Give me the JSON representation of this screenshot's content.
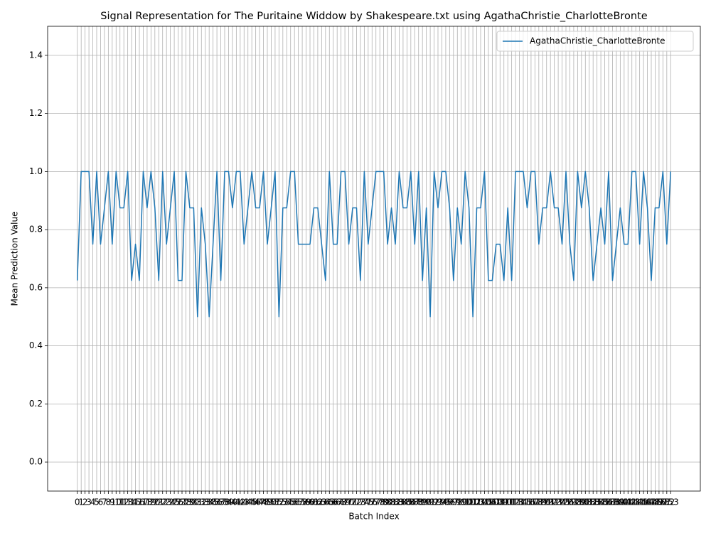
{
  "chart_data": {
    "type": "line",
    "title": "Signal Representation for The Puritaine Widdow by Shakespeare.txt using AgathaChristie_CharlotteBronte",
    "xlabel": "Batch Index",
    "ylabel": "Mean Prediction Value",
    "x": [
      0,
      1,
      2,
      3,
      4,
      5,
      6,
      7,
      8,
      9,
      10,
      11,
      12,
      13,
      14,
      15,
      16,
      17,
      18,
      19,
      20,
      21,
      22,
      23,
      24,
      25,
      26,
      27,
      28,
      29,
      30,
      31,
      32,
      33,
      34,
      35,
      36,
      37,
      38,
      39,
      40,
      41,
      42,
      43,
      44,
      45,
      46,
      47,
      48,
      49,
      50,
      51,
      52,
      53,
      54,
      55,
      56,
      57,
      58,
      59,
      60,
      61,
      62,
      63,
      64,
      65,
      66,
      67,
      68,
      69,
      70,
      71,
      72,
      73,
      74,
      75,
      76,
      77,
      78,
      79,
      80,
      81,
      82,
      83,
      84,
      85,
      86,
      87,
      88,
      89,
      90,
      91,
      92,
      93,
      94,
      95,
      96,
      97,
      98,
      99,
      100,
      101,
      102,
      103,
      104,
      105,
      106,
      107,
      108,
      109,
      110,
      111,
      112,
      113,
      114,
      115,
      116,
      117,
      118,
      119,
      120,
      121,
      122,
      123,
      124,
      125,
      126,
      127,
      128,
      129,
      130,
      131,
      132,
      133,
      134,
      135,
      136,
      137,
      138,
      139,
      140,
      141,
      142,
      143,
      144,
      145,
      146,
      147,
      148,
      149,
      150,
      151,
      152,
      153
    ],
    "series": [
      {
        "name": "AgathaChristie_CharlotteBronte",
        "color": "#1f77b4",
        "values": [
          0.625,
          1,
          1,
          1,
          0.75,
          1,
          0.75,
          0.875,
          1,
          0.75,
          1,
          0.875,
          0.875,
          1,
          0.625,
          0.75,
          0.625,
          1,
          0.875,
          1,
          0.875,
          0.625,
          1,
          0.75,
          0.875,
          1,
          0.625,
          0.625,
          1,
          0.875,
          0.875,
          0.5,
          0.875,
          0.75,
          0.5,
          0.75,
          1,
          0.625,
          1,
          1,
          0.875,
          1,
          1,
          0.75,
          0.875,
          1,
          0.875,
          0.875,
          1,
          0.75,
          0.875,
          1,
          0.5,
          0.875,
          0.875,
          1,
          1,
          0.75,
          0.75,
          0.75,
          0.75,
          0.875,
          0.875,
          0.75,
          0.625,
          1,
          0.75,
          0.75,
          1,
          1,
          0.75,
          0.875,
          0.875,
          0.625,
          1,
          0.75,
          0.875,
          1,
          1,
          1,
          0.75,
          0.875,
          0.75,
          1,
          0.875,
          0.875,
          1,
          0.75,
          1,
          0.625,
          0.875,
          0.5,
          1,
          0.875,
          1,
          1,
          0.875,
          0.625,
          0.875,
          0.75,
          1,
          0.875,
          0.5,
          0.875,
          0.875,
          1,
          0.625,
          0.625,
          0.75,
          0.75,
          0.625,
          0.875,
          0.625,
          1,
          1,
          1,
          0.875,
          1,
          1,
          0.75,
          0.875,
          0.875,
          1,
          0.875,
          0.875,
          0.75,
          1,
          0.75,
          0.625,
          1,
          0.875,
          1,
          0.875,
          0.625,
          0.75,
          0.875,
          0.75,
          1,
          0.625,
          0.75,
          0.875,
          0.75,
          0.75,
          1,
          1,
          0.75,
          1,
          0.875,
          0.625,
          0.875,
          0.875,
          1,
          0.75,
          1
        ]
      }
    ],
    "xlim": [
      -7.65,
      160.65
    ],
    "xticks": [
      0,
      1,
      2,
      3,
      4,
      5,
      6,
      7,
      8,
      9,
      10,
      11,
      12,
      13,
      14,
      15,
      16,
      17,
      18,
      19,
      20,
      21,
      22,
      23,
      24,
      25,
      26,
      27,
      28,
      29,
      30,
      31,
      32,
      33,
      34,
      35,
      36,
      37,
      38,
      39,
      40,
      41,
      42,
      43,
      44,
      45,
      46,
      47,
      48,
      49,
      50,
      51,
      52,
      53,
      54,
      55,
      56,
      57,
      58,
      59,
      60,
      61,
      62,
      63,
      64,
      65,
      66,
      67,
      68,
      69,
      70,
      71,
      72,
      73,
      74,
      75,
      76,
      77,
      78,
      79,
      80,
      81,
      82,
      83,
      84,
      85,
      86,
      87,
      88,
      89,
      90,
      91,
      92,
      93,
      94,
      95,
      96,
      97,
      98,
      99,
      100,
      101,
      102,
      103,
      104,
      105,
      106,
      107,
      108,
      109,
      110,
      111,
      112,
      113,
      114,
      115,
      116,
      117,
      118,
      119,
      120,
      121,
      122,
      123,
      124,
      125,
      126,
      127,
      128,
      129,
      130,
      131,
      132,
      133,
      134,
      135,
      136,
      137,
      138,
      139,
      140,
      141,
      142,
      143,
      144,
      145,
      146,
      147,
      148,
      149,
      150,
      151,
      152,
      153
    ],
    "ylim": [
      -0.1,
      1.5
    ],
    "yticks": [
      {
        "value": 0,
        "label": "0.0"
      },
      0.2,
      0.4,
      0.6,
      0.8,
      {
        "value": 1,
        "label": "1.0"
      },
      1.2,
      1.4
    ],
    "grid": true,
    "legend": "upper right"
  }
}
